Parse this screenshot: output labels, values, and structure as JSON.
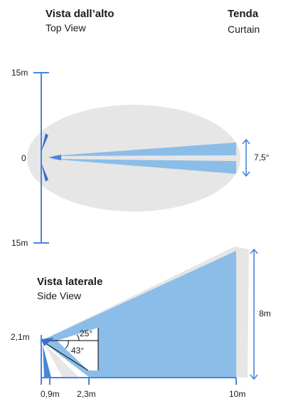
{
  "top_view": {
    "title_it": "Vista dall’alto",
    "title_en": "Top View",
    "label_top": "15m",
    "label_mid": "0",
    "label_bottom": "15m",
    "angle": "7,5°"
  },
  "mode": {
    "title_it": "Tenda",
    "title_en": "Curtain"
  },
  "side_view": {
    "title_it": "Vista laterale",
    "title_en": "Side View",
    "height_label": "2,1m",
    "angle_upper": "25°",
    "angle_lower": "43°",
    "dist_1": "0,9m",
    "dist_2": "2,3m",
    "dist_3": "10m",
    "range_label": "8m"
  },
  "colors": {
    "beam": "#8bbde8",
    "axis": "#4a86d8",
    "halo": "#e6e6e6",
    "sensor": "#3a6fcf"
  }
}
